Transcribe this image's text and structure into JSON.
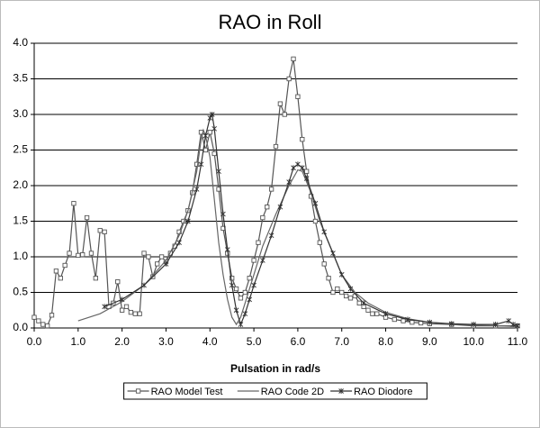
{
  "chart_data": {
    "type": "line",
    "title": "RAO in Roll",
    "x_label": "Pulsation in rad/s",
    "xlim": [
      0,
      11
    ],
    "ylim": [
      0,
      4
    ],
    "grid": true,
    "legend": "bottom",
    "xticks": [
      {
        "value": 0,
        "label": "0.0"
      },
      {
        "value": 1,
        "label": "1.0"
      },
      {
        "value": 2,
        "label": "2.0"
      },
      {
        "value": 3,
        "label": "3.0"
      },
      {
        "value": 4,
        "label": "4.0"
      },
      {
        "value": 5,
        "label": "5.0"
      },
      {
        "value": 6,
        "label": "6.0"
      },
      {
        "value": 7,
        "label": "7.0"
      },
      {
        "value": 8,
        "label": "8.0"
      },
      {
        "value": 9,
        "label": "9.0"
      },
      {
        "value": 10,
        "label": "10.0"
      },
      {
        "value": 11,
        "label": "11.0"
      }
    ],
    "yticks": [
      {
        "value": 0,
        "label": "0.0"
      },
      0.5,
      {
        "value": 1,
        "label": "1.0"
      },
      1.5,
      {
        "value": 2,
        "label": "2.0"
      },
      2.5,
      {
        "value": 3,
        "label": "3.0"
      },
      3.5,
      {
        "value": 4,
        "label": "4.0"
      }
    ],
    "series": [
      {
        "name": "RAO Model Test",
        "color": "#555555",
        "marker": "square",
        "x": [
          0.0,
          0.1,
          0.2,
          0.3,
          0.4,
          0.5,
          0.6,
          0.7,
          0.8,
          0.9,
          1.0,
          1.1,
          1.2,
          1.3,
          1.4,
          1.5,
          1.6,
          1.7,
          1.8,
          1.9,
          2.0,
          2.1,
          2.2,
          2.3,
          2.4,
          2.5,
          2.6,
          2.7,
          2.8,
          2.9,
          3.0,
          3.1,
          3.2,
          3.3,
          3.4,
          3.5,
          3.6,
          3.7,
          3.8,
          3.9,
          4.0,
          4.1,
          4.2,
          4.3,
          4.4,
          4.5,
          4.6,
          4.7,
          4.8,
          4.9,
          5.0,
          5.1,
          5.2,
          5.3,
          5.4,
          5.5,
          5.6,
          5.7,
          5.8,
          5.9,
          6.0,
          6.1,
          6.2,
          6.3,
          6.4,
          6.5,
          6.6,
          6.7,
          6.8,
          6.9,
          7.0,
          7.1,
          7.2,
          7.3,
          7.4,
          7.5,
          7.6,
          7.7,
          7.8,
          8.0,
          8.2,
          8.4,
          8.6,
          8.8,
          9.0,
          9.5,
          10.0,
          10.5,
          11.0
        ],
        "values": [
          0.15,
          0.1,
          0.05,
          0.03,
          0.18,
          0.8,
          0.7,
          0.88,
          1.05,
          1.75,
          1.02,
          1.03,
          1.55,
          1.05,
          0.7,
          1.37,
          1.35,
          0.3,
          0.35,
          0.65,
          0.25,
          0.3,
          0.22,
          0.2,
          0.2,
          1.05,
          1.0,
          0.72,
          0.9,
          1.0,
          0.93,
          1.05,
          1.15,
          1.35,
          1.5,
          1.65,
          1.9,
          2.3,
          2.75,
          2.5,
          2.75,
          2.45,
          1.95,
          1.4,
          1.05,
          0.7,
          0.55,
          0.42,
          0.5,
          0.7,
          0.95,
          1.2,
          1.55,
          1.7,
          1.95,
          2.55,
          3.15,
          3.0,
          3.5,
          3.78,
          3.25,
          2.65,
          2.2,
          1.85,
          1.5,
          1.2,
          0.9,
          0.7,
          0.5,
          0.55,
          0.5,
          0.45,
          0.42,
          0.45,
          0.35,
          0.3,
          0.25,
          0.2,
          0.2,
          0.15,
          0.12,
          0.1,
          0.08,
          0.07,
          0.06,
          0.05,
          0.03,
          0.03,
          0.03
        ]
      },
      {
        "name": "RAO Code 2D",
        "color": "#666666",
        "marker": "none",
        "x": [
          1.0,
          1.5,
          2.0,
          2.5,
          3.0,
          3.3,
          3.5,
          3.7,
          3.8,
          3.85,
          3.9,
          4.0,
          4.1,
          4.2,
          4.3,
          4.4,
          4.5,
          4.6,
          4.7,
          4.8,
          5.0,
          5.2,
          5.5,
          5.8,
          6.0,
          6.1,
          6.3,
          6.5,
          6.8,
          7.0,
          7.3,
          7.6,
          8.0,
          8.5,
          9.0,
          9.5,
          10.0,
          11.0
        ],
        "values": [
          0.1,
          0.2,
          0.37,
          0.6,
          0.95,
          1.3,
          1.65,
          2.2,
          2.65,
          2.78,
          2.7,
          2.4,
          1.8,
          1.2,
          0.75,
          0.4,
          0.15,
          0.05,
          0.15,
          0.35,
          0.75,
          1.15,
          1.6,
          2.0,
          2.22,
          2.2,
          1.9,
          1.5,
          1.05,
          0.75,
          0.5,
          0.35,
          0.22,
          0.13,
          0.08,
          0.05,
          0.04,
          0.02
        ]
      },
      {
        "name": "RAO Diodore",
        "color": "#333333",
        "marker": "star",
        "x": [
          1.6,
          2.0,
          2.5,
          3.0,
          3.3,
          3.5,
          3.7,
          3.8,
          3.9,
          4.0,
          4.05,
          4.1,
          4.2,
          4.3,
          4.4,
          4.5,
          4.6,
          4.7,
          4.8,
          4.9,
          5.0,
          5.2,
          5.4,
          5.6,
          5.8,
          5.9,
          6.0,
          6.1,
          6.2,
          6.4,
          6.6,
          6.8,
          7.0,
          7.2,
          7.5,
          8.0,
          8.5,
          9.0,
          9.5,
          10.0,
          10.5,
          10.8,
          10.9,
          11.0
        ],
        "values": [
          0.3,
          0.4,
          0.6,
          0.9,
          1.2,
          1.5,
          1.95,
          2.3,
          2.7,
          2.95,
          3.0,
          2.8,
          2.2,
          1.6,
          1.1,
          0.6,
          0.25,
          0.05,
          0.2,
          0.4,
          0.6,
          0.95,
          1.3,
          1.7,
          2.05,
          2.25,
          2.3,
          2.25,
          2.1,
          1.75,
          1.35,
          1.05,
          0.75,
          0.55,
          0.35,
          0.2,
          0.12,
          0.08,
          0.06,
          0.05,
          0.05,
          0.1,
          0.05,
          0.03
        ]
      }
    ]
  }
}
